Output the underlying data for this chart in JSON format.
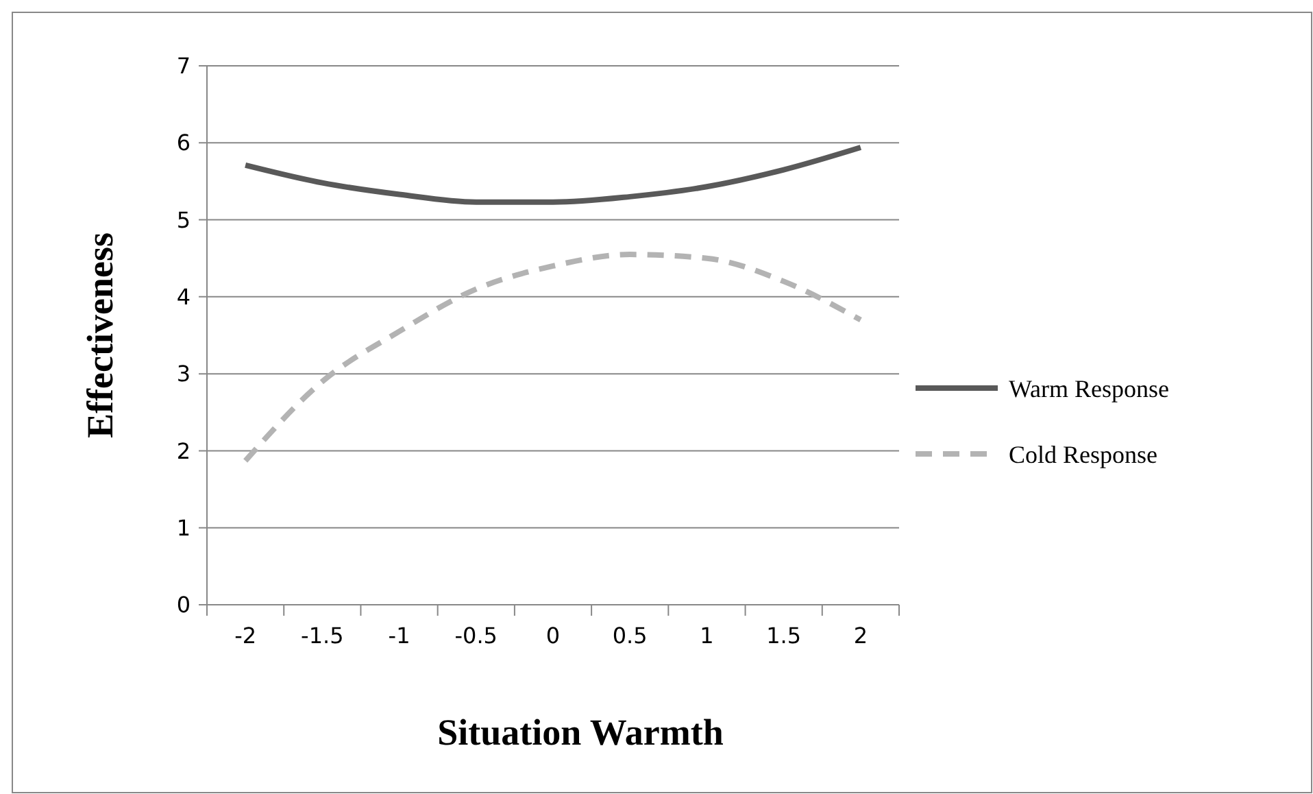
{
  "chart_data": {
    "type": "line",
    "xlabel": "Situation Warmth",
    "ylabel": "Effectiveness",
    "categories": [
      "-2",
      "-1.5",
      "-1",
      "-0.5",
      "0",
      "0.5",
      "1",
      "1.5",
      "2"
    ],
    "series": [
      {
        "name": "Warm Response",
        "color": "#595959",
        "line_style": "solid",
        "values": [
          5.71,
          5.48,
          5.33,
          5.23,
          5.23,
          5.3,
          5.43,
          5.65,
          5.94
        ]
      },
      {
        "name": "Cold Response",
        "color": "#b3b3b3",
        "line_style": "dashed",
        "values": [
          1.87,
          2.9,
          3.55,
          4.1,
          4.4,
          4.55,
          4.5,
          4.2,
          3.7
        ]
      }
    ],
    "ylim": [
      0,
      7
    ],
    "yticks": [
      0,
      1,
      2,
      3,
      4,
      5,
      6,
      7
    ],
    "grid": "y",
    "legend": "right",
    "marker": "none"
  }
}
